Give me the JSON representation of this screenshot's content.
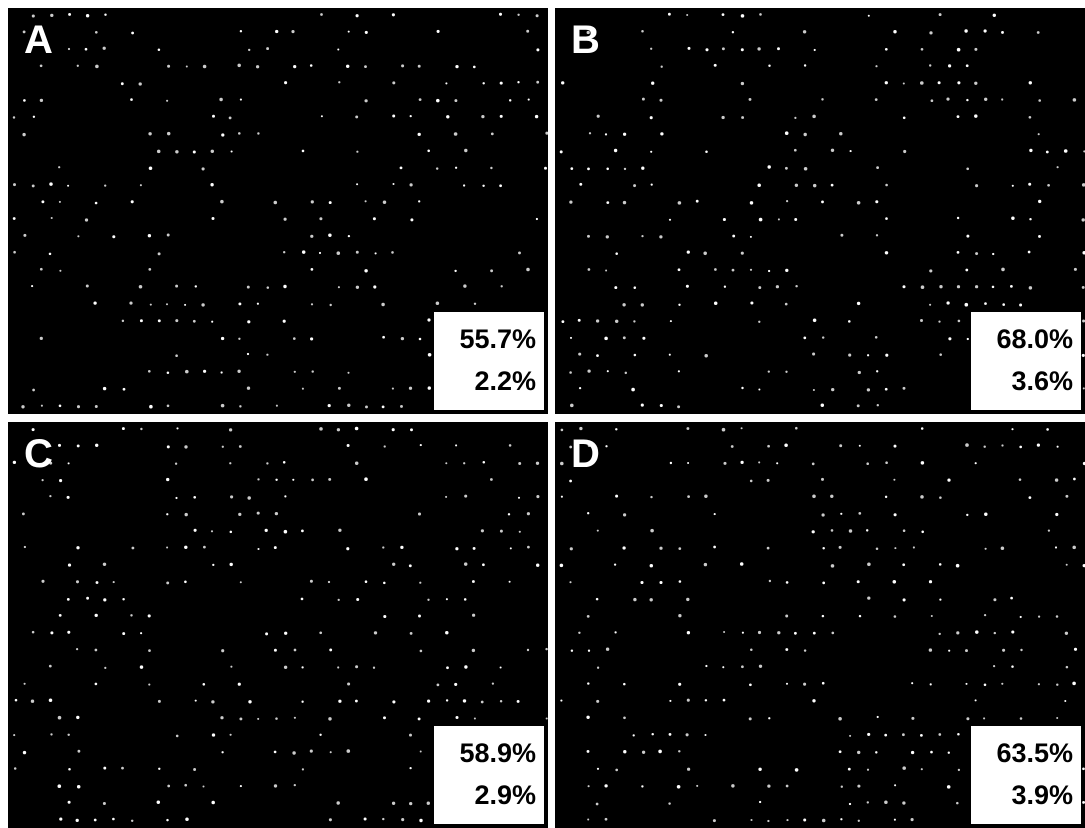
{
  "panels": [
    {
      "label": "A",
      "line1": "55.7%",
      "line2": "2.2%"
    },
    {
      "label": "B",
      "line1": "68.0%",
      "line2": "3.6%"
    },
    {
      "label": "C",
      "line1": "58.9%",
      "line2": "2.9%"
    },
    {
      "label": "D",
      "line1": "63.5%",
      "line2": "3.9%"
    }
  ]
}
